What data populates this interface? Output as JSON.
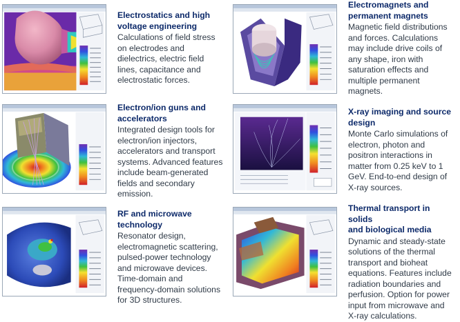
{
  "topics": [
    {
      "title": "Electrostatics and high\nvoltage engineering",
      "description": "Calculations of field stress\non electrodes and\ndielectrics, electric field\nlines, capacitance and\nelectrostatic forces."
    },
    {
      "title": "Electromagnets and\npermanent magnets",
      "description": "Magnetic field distributions\nand forces. Calculations\nmay include drive coils of\nany shape, iron with\nsaturation effects and\nmultiple permanent\nmagnets."
    },
    {
      "title": "Electron/ion guns and\naccelerators",
      "description": "Integrated design tools for\nelectron/ion injectors,\naccelerators and transport\nsystems. Advanced features\ninclude beam-generated\nfields and secondary\nemission."
    },
    {
      "title": "X-ray imaging and source\ndesign",
      "description": "Monte Carlo simulations of\nelectron, photon and\npositron interactions in\nmatter from 0.25 keV to 1\nGeV. End-to-end design of\nX-ray sources."
    },
    {
      "title": "RF and microwave\ntechnology",
      "description": "Resonator design,\nelectromagnetic scattering,\npulsed-power technology\nand microwave devices.\nTime-domain and\nfrequency-domain solutions\nfor 3D structures."
    },
    {
      "title": "Thermal transport in solids\nand biological media",
      "description": "Dynamic and steady-state\nsolutions of the thermal\ntransport and bioheat\nequations. Features include\nradiation boundaries and\nperfusion. Option for power\ninput from microwave and\nX-ray calculations."
    }
  ]
}
